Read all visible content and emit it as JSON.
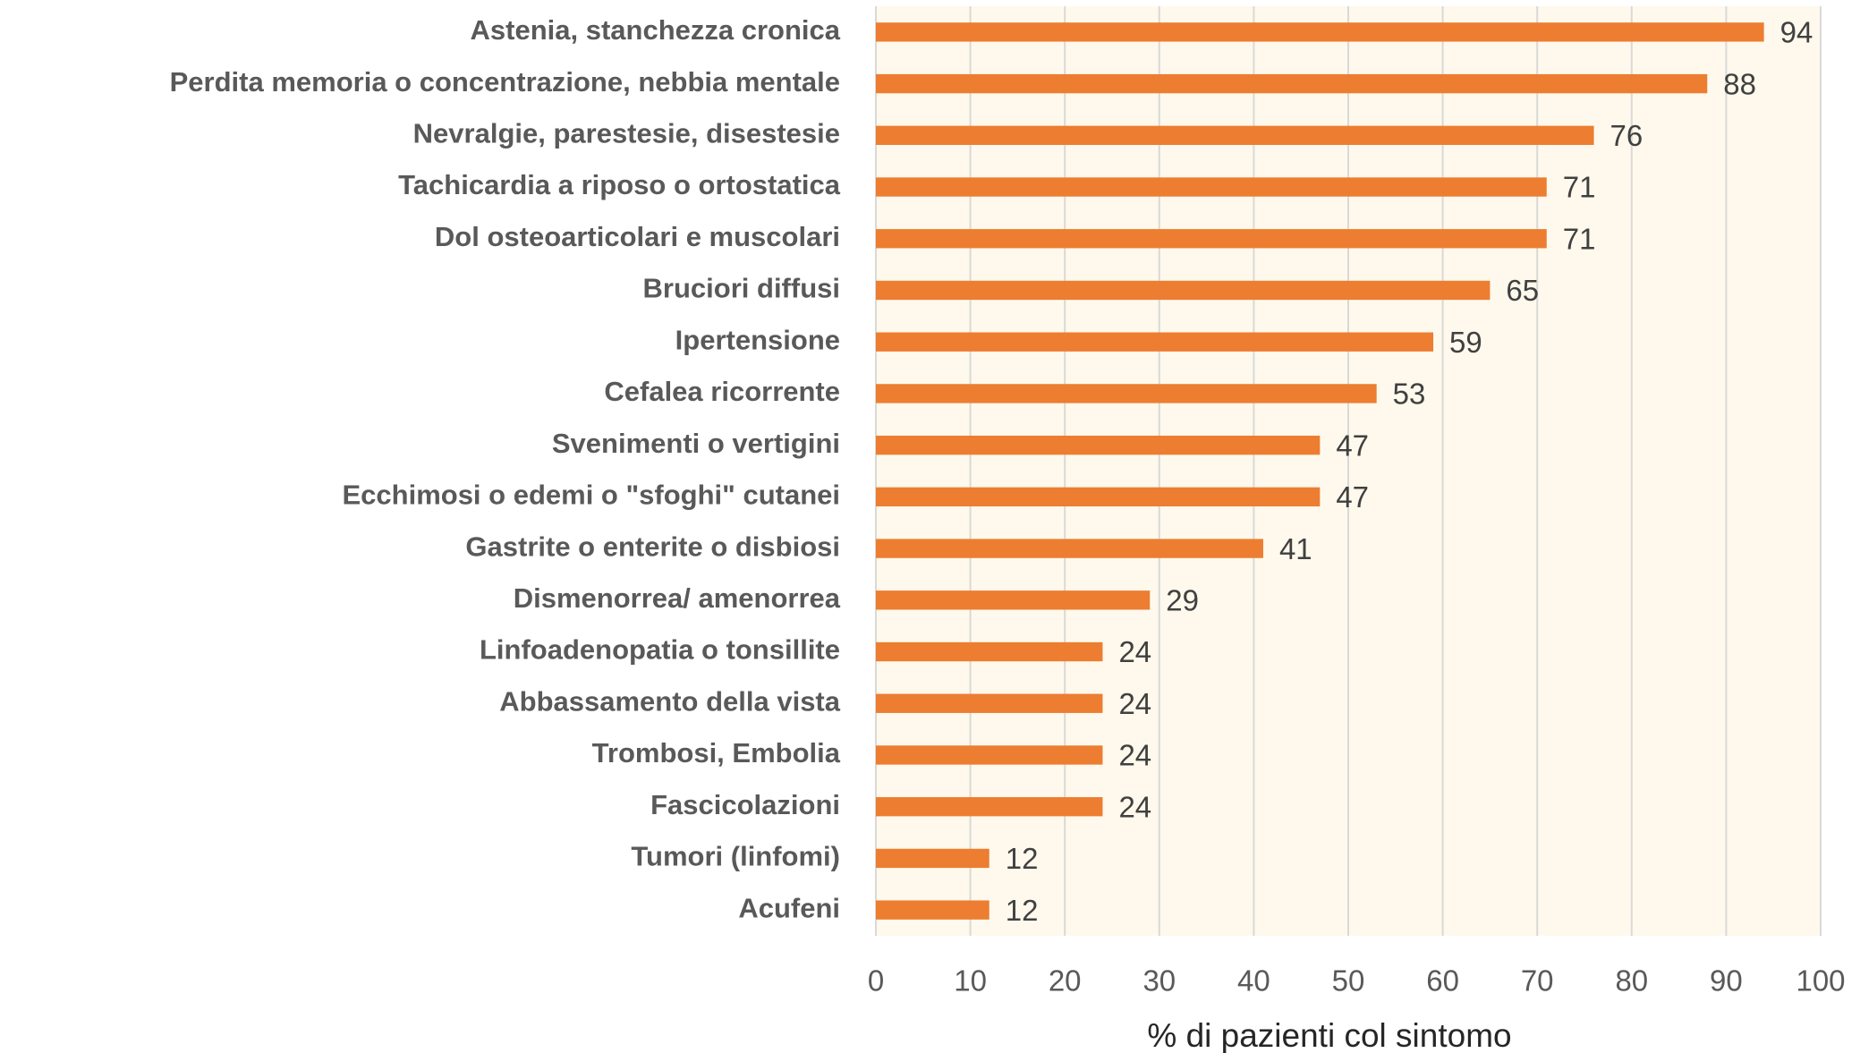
{
  "chart_data": {
    "type": "bar",
    "orientation": "horizontal",
    "x_label": "% di pazienti col sintomo",
    "categories": [
      "Astenia, stanchezza cronica",
      "Perdita memoria o concentrazione, nebbia mentale",
      "Nevralgie, parestesie, disestesie",
      "Tachicardia a riposo o ortostatica",
      "Dol osteoarticolari e muscolari",
      "Bruciori diffusi",
      "Ipertensione",
      "Cefalea ricorrente",
      "Svenimenti o vertigini",
      "Ecchimosi o edemi o \"sfoghi\" cutanei",
      "Gastrite o enterite o disbiosi",
      "Dismenorrea/ amenorrea",
      "Linfoadenopatia o tonsillite",
      "Abbassamento della vista",
      "Trombosi, Embolia",
      "Fascicolazioni",
      "Tumori (linfomi)",
      "Acufeni"
    ],
    "values": [
      94,
      88,
      76,
      71,
      71,
      65,
      59,
      53,
      47,
      47,
      41,
      29,
      24,
      24,
      24,
      24,
      12,
      12
    ],
    "color": "#ed7d31",
    "plot_background": "#fef9ec",
    "xlim": [
      0,
      100
    ],
    "xticks": [
      0,
      10,
      20,
      30,
      40,
      50,
      60,
      70,
      80,
      90,
      100
    ],
    "grid": true
  }
}
